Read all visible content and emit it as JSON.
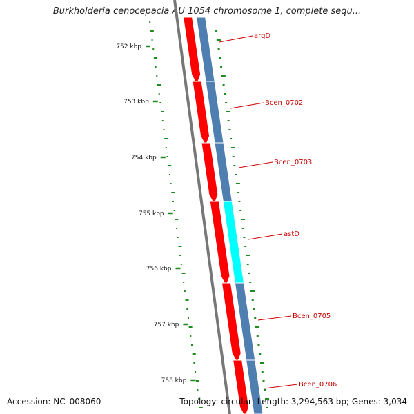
{
  "title": "Burkholderia cenocepacia AU 1054 chromosome 1, complete sequ...",
  "footer": {
    "accession": "Accession: NC_008060",
    "summary": "Topology: circular; Length: 3,294,563 bp; Genes: 3,034"
  },
  "kbp_ticks": [
    "752 kbp",
    "753 kbp",
    "754 kbp",
    "755 kbp",
    "756 kbp",
    "757 kbp",
    "758 kbp"
  ],
  "genes": [
    {
      "name": "argD",
      "color": "#ff0000"
    },
    {
      "name": "Bcen_0702",
      "color": "#ff0000"
    },
    {
      "name": "Bcen_0703",
      "color": "#ff0000"
    },
    {
      "name": "astD",
      "color": "#ff0000"
    },
    {
      "name": "Bcen_0705",
      "color": "#ff0000"
    },
    {
      "name": "Bcen_0706",
      "color": "#ff0000"
    }
  ],
  "colors": {
    "backbone": "#777777",
    "cds": "#ff0000",
    "cog_track": "#4f7fb0",
    "cog_highlight": "#00ffff",
    "gc_skew": "#1f8a1f",
    "label": "#cc0000"
  }
}
